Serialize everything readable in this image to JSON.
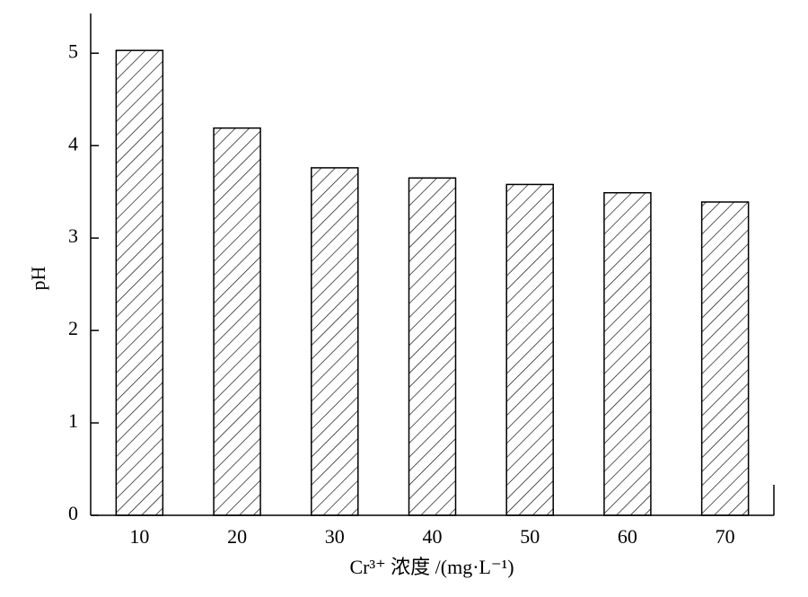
{
  "chart_data": {
    "type": "bar",
    "categories": [
      "10",
      "20",
      "30",
      "40",
      "50",
      "60",
      "70"
    ],
    "values": [
      5.03,
      4.19,
      3.76,
      3.65,
      3.58,
      3.49,
      3.39
    ],
    "color": "#000000",
    "xlabel": "Cr³⁺ 浓度 /(mg·L⁻¹)",
    "ylabel": "pH",
    "ylim": [
      0,
      5.43
    ],
    "yticks": [
      0,
      1,
      2,
      3,
      4,
      5
    ],
    "grid": false
  }
}
